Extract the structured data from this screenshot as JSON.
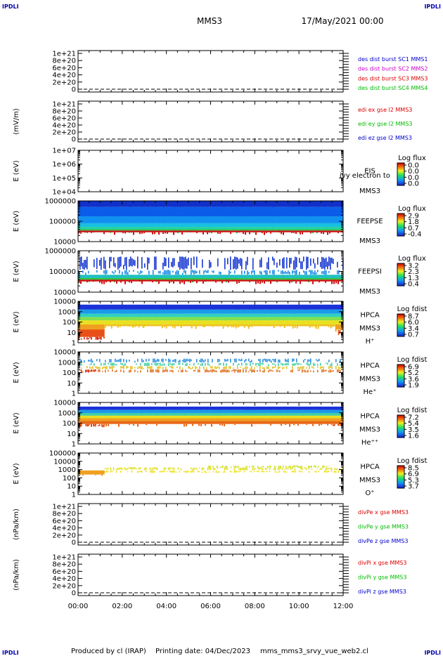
{
  "corner_label": "IPDLI",
  "header": {
    "mission": "MMS3",
    "datetime": "17/May/2021 00:00"
  },
  "footer": {
    "produced_by": "Produced by cl (IRAP)",
    "printing_date": "Printing date: 04/Dec/2023",
    "file": "mms_mms3_srvy_vue_web2.cl"
  },
  "chart_data": {
    "type": "stacked_timeseries_and_spectrograms",
    "x_ticks": [
      "00:00",
      "02:00",
      "04:00",
      "06:00",
      "08:00",
      "10:00",
      "12:00"
    ],
    "x_range_hours": [
      0,
      12
    ],
    "panels": [
      {
        "id": "des",
        "type": "line",
        "ylabel": "",
        "y_ticks": [
          "1e+21",
          "8e+20",
          "6e+20",
          "4e+20",
          "2e+20",
          "0"
        ],
        "ylim": [
          0,
          1e+21
        ],
        "zero_dashed": true,
        "legend": [
          {
            "text": "des dist burst SC1 MMS1",
            "color": "#0000cc"
          },
          {
            "text": "des dist burst SC2 MMS2",
            "color": "#cc00cc"
          },
          {
            "text": "des dist burst SC3 MMS3",
            "color": "#dd0000"
          },
          {
            "text": "des dist burst SC4 MMS4",
            "color": "#00bb00"
          }
        ]
      },
      {
        "id": "edi",
        "type": "line",
        "ylabel": "(mV/m)",
        "y_ticks": [
          "1e+21",
          "8e+20",
          "6e+20",
          "4e+20",
          "2e+20",
          "0"
        ],
        "ylim": [
          0,
          1e+21
        ],
        "zero_dashed": true,
        "legend": [
          {
            "text": "edi ex gse l2 MMS3",
            "color": "#dd0000"
          },
          {
            "text": "edi ey gse l2 MMS3",
            "color": "#00bb00"
          },
          {
            "text": "edi ez gse l2 MMS3",
            "color": "#0000cc"
          }
        ]
      },
      {
        "id": "eis",
        "type": "spectrogram",
        "ylabel": "E (eV)",
        "y_ticks": [
          "1e+07",
          "1e+06",
          "1e+05",
          "1e+04"
        ],
        "instrument": [
          "EIS",
          "MMS3"
        ],
        "overlap_text": "ivy electron to",
        "colorbar_title": "Log flux",
        "colorbar_ticks": [
          "0.0",
          "0.0",
          "0.0",
          "0.0"
        ],
        "bands": []
      },
      {
        "id": "feepse",
        "type": "spectrogram",
        "ylabel": "E (eV)",
        "y_ticks": [
          "1000000",
          "100000",
          "10000"
        ],
        "instrument": [
          "FEEPSE",
          "MMS3"
        ],
        "colorbar_title": "Log flux",
        "colorbar_ticks": [
          "2.9",
          "1.8",
          "0.7",
          "-0.4"
        ],
        "bands": [
          {
            "lo": 0.0,
            "hi": 0.15,
            "color": "#1030c8",
            "from": 0.0,
            "to": 1.0
          },
          {
            "lo": 0.15,
            "hi": 0.38,
            "color": "#0a5de8",
            "from": 0.0,
            "to": 1.0
          },
          {
            "lo": 0.38,
            "hi": 0.55,
            "color": "#1090f0",
            "from": 0.0,
            "to": 1.0
          },
          {
            "lo": 0.55,
            "hi": 0.64,
            "color": "#18c0e0",
            "from": 0.0,
            "to": 1.0
          },
          {
            "lo": 0.64,
            "hi": 0.7,
            "color": "#20d0a0",
            "from": 0.0,
            "to": 1.0
          },
          {
            "lo": 0.7,
            "hi": 0.73,
            "color": "#30c050",
            "from": 0.0,
            "to": 1.0
          },
          {
            "lo": 0.73,
            "hi": 0.77,
            "color": "#cc1010",
            "from": 0.0,
            "to": 1.0
          }
        ]
      },
      {
        "id": "feepsi",
        "type": "spectrogram",
        "ylabel": "E (eV)",
        "y_ticks": [
          "1000000",
          "100000",
          "10000"
        ],
        "instrument": [
          "FEEPSI",
          "MMS3"
        ],
        "colorbar_title": "Log flux",
        "colorbar_ticks": [
          "3.2",
          "2.3",
          "1.3",
          "0.4"
        ],
        "bands": [
          {
            "lo": 0.14,
            "hi": 0.46,
            "color": "#1838d0",
            "from": 0.0,
            "to": 1.0,
            "sparse": true
          },
          {
            "lo": 0.46,
            "hi": 0.58,
            "color": "#1a8ae8",
            "from": 0.0,
            "to": 1.0,
            "sparse": true
          },
          {
            "lo": 0.58,
            "hi": 0.66,
            "color": "#20c0c0",
            "from": 0.0,
            "to": 1.0
          },
          {
            "lo": 0.66,
            "hi": 0.7,
            "color": "#30c040",
            "from": 0.0,
            "to": 1.0
          },
          {
            "lo": 0.7,
            "hi": 0.74,
            "color": "#cc1010",
            "from": 0.0,
            "to": 1.0
          }
        ]
      },
      {
        "id": "hpca_h",
        "type": "spectrogram",
        "ylabel": "E (eV)",
        "y_ticks": [
          "10000",
          "1000",
          "100",
          "10",
          "1"
        ],
        "instrument": [
          "HPCA",
          "MMS3",
          "H⁺"
        ],
        "colorbar_title": "Log fdist",
        "colorbar_ticks": [
          "8.7",
          "6.0",
          "3.4",
          "0.7"
        ],
        "bands": [
          {
            "lo": 0.08,
            "hi": 0.2,
            "color": "#1a32d8",
            "from": 0.0,
            "to": 1.0
          },
          {
            "lo": 0.2,
            "hi": 0.3,
            "color": "#1a9ae8",
            "from": 0.0,
            "to": 1.0
          },
          {
            "lo": 0.3,
            "hi": 0.38,
            "color": "#30d0c0",
            "from": 0.0,
            "to": 1.0
          },
          {
            "lo": 0.38,
            "hi": 0.46,
            "color": "#80e050",
            "from": 0.0,
            "to": 1.0
          },
          {
            "lo": 0.46,
            "hi": 0.56,
            "color": "#e8e020",
            "from": 0.0,
            "to": 1.0
          },
          {
            "lo": 0.56,
            "hi": 0.68,
            "color": "#f0a020",
            "from": 0.0,
            "to": 0.1
          },
          {
            "lo": 0.56,
            "hi": 0.6,
            "color": "#f0c020",
            "from": 0.1,
            "to": 0.97
          },
          {
            "lo": 0.56,
            "hi": 0.68,
            "color": "#f0a020",
            "from": 0.97,
            "to": 1.0
          },
          {
            "lo": 0.68,
            "hi": 0.86,
            "color": "#e85018",
            "from": 0.0,
            "to": 0.1
          },
          {
            "lo": 0.86,
            "hi": 0.93,
            "color": "#d02010",
            "from": 0.0,
            "to": 0.09,
            "sparse": true
          },
          {
            "lo": 0.68,
            "hi": 0.84,
            "color": "#e85018",
            "from": 0.97,
            "to": 1.0,
            "sparse": true
          }
        ]
      },
      {
        "id": "hpca_he1",
        "type": "spectrogram",
        "ylabel": "E (eV)",
        "y_ticks": [
          "10000",
          "1000",
          "100",
          "10",
          "1"
        ],
        "instrument": [
          "HPCA",
          "MMS3",
          "He⁺"
        ],
        "colorbar_title": "Log fdist",
        "colorbar_ticks": [
          "6.9",
          "5.2",
          "3.6",
          "1.9"
        ],
        "bands": [
          {
            "lo": 0.16,
            "hi": 0.26,
            "color": "#3090e0",
            "from": 0.0,
            "to": 1.0,
            "sparse": true
          },
          {
            "lo": 0.26,
            "hi": 0.34,
            "color": "#40d0a0",
            "from": 0.0,
            "to": 1.0,
            "sparse": true
          },
          {
            "lo": 0.34,
            "hi": 0.42,
            "color": "#e0c020",
            "from": 0.0,
            "to": 1.0,
            "sparse": true
          },
          {
            "lo": 0.42,
            "hi": 0.5,
            "color": "#e07020",
            "from": 0.0,
            "to": 1.0,
            "sparse": true
          },
          {
            "lo": 0.42,
            "hi": 0.5,
            "color": "#d02010",
            "from": 0.0,
            "to": 0.07,
            "sparse": true
          }
        ]
      },
      {
        "id": "hpca_he2",
        "type": "spectrogram",
        "ylabel": "E (eV)",
        "y_ticks": [
          "10000",
          "1000",
          "100",
          "10",
          "1"
        ],
        "instrument": [
          "HPCA",
          "MMS3",
          "He⁺⁺"
        ],
        "colorbar_title": "Log fdist",
        "colorbar_ticks": [
          "7.2",
          "5.4",
          "3.5",
          "1.6"
        ],
        "bands": [
          {
            "lo": 0.1,
            "hi": 0.18,
            "color": "#1a32d8",
            "from": 0.0,
            "to": 1.0
          },
          {
            "lo": 0.18,
            "hi": 0.26,
            "color": "#1a9ae8",
            "from": 0.0,
            "to": 1.0
          },
          {
            "lo": 0.26,
            "hi": 0.32,
            "color": "#40d0a0",
            "from": 0.0,
            "to": 1.0
          },
          {
            "lo": 0.32,
            "hi": 0.38,
            "color": "#e8e020",
            "from": 0.0,
            "to": 1.0
          },
          {
            "lo": 0.38,
            "hi": 0.45,
            "color": "#f0a020",
            "from": 0.0,
            "to": 1.0
          },
          {
            "lo": 0.45,
            "hi": 0.52,
            "color": "#e86818",
            "from": 0.0,
            "to": 1.0
          },
          {
            "lo": 0.52,
            "hi": 0.6,
            "color": "#e04010",
            "from": 0.0,
            "to": 0.1,
            "sparse": true
          },
          {
            "lo": 0.52,
            "hi": 0.58,
            "color": "#e04010",
            "from": 0.96,
            "to": 1.0,
            "sparse": true
          }
        ]
      },
      {
        "id": "hpca_o",
        "type": "spectrogram",
        "ylabel": "E (eV)",
        "y_ticks": [
          "100000",
          "10000",
          "1000",
          "100",
          "10",
          "1"
        ],
        "instrument": [
          "HPCA",
          "MMS3",
          "O⁺"
        ],
        "colorbar_title": "Log fdist",
        "colorbar_ticks": [
          "8.5",
          "6.9",
          "5.3",
          "3.7"
        ],
        "bands": [
          {
            "lo": 0.3,
            "hi": 0.36,
            "color": "#c8e020",
            "from": 0.48,
            "to": 0.94,
            "sparse": true
          },
          {
            "lo": 0.34,
            "hi": 0.42,
            "color": "#e0e020",
            "from": 0.1,
            "to": 1.0,
            "sparse": true
          },
          {
            "lo": 0.42,
            "hi": 0.52,
            "color": "#f0a020",
            "from": 0.0,
            "to": 0.1
          },
          {
            "lo": 0.42,
            "hi": 0.48,
            "color": "#f0e020",
            "from": 0.1,
            "to": 1.0,
            "sparse": true
          }
        ]
      },
      {
        "id": "divpe",
        "type": "line",
        "ylabel": "(nPa/km)",
        "y_ticks": [
          "1e+21",
          "8e+20",
          "6e+20",
          "4e+20",
          "2e+20",
          "0"
        ],
        "ylim": [
          0,
          1e+21
        ],
        "zero_dashed": true,
        "legend": [
          {
            "text": "divPe x gse MMS3",
            "color": "#dd0000"
          },
          {
            "text": "divPe y gse MMS3",
            "color": "#00bb00"
          },
          {
            "text": "divPe z gse MMS3",
            "color": "#0000cc"
          }
        ]
      },
      {
        "id": "divpi",
        "type": "line",
        "ylabel": "(nPa/km)",
        "y_ticks": [
          "1e+21",
          "8e+20",
          "6e+20",
          "4e+20",
          "2e+20",
          "0"
        ],
        "ylim": [
          0,
          1e+21
        ],
        "zero_dashed": true,
        "legend": [
          {
            "text": "divPi x gse MMS3",
            "color": "#dd0000"
          },
          {
            "text": "divPi y gse MMS3",
            "color": "#00bb00"
          },
          {
            "text": "divPi z gse MMS3",
            "color": "#0000cc"
          }
        ]
      }
    ]
  }
}
